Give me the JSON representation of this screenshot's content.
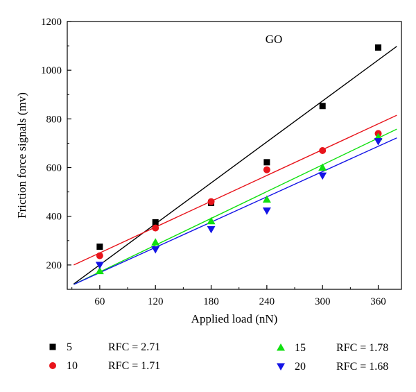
{
  "chart_data": {
    "type": "scatter",
    "title": "",
    "annotation": "GO",
    "xlabel": "Applied load (nN)",
    "ylabel": "Friction force signals (mv)",
    "xlim": [
      25,
      385
    ],
    "ylim": [
      100,
      1200
    ],
    "xticks": [
      60,
      120,
      180,
      240,
      300,
      360
    ],
    "yticks": [
      200,
      400,
      600,
      800,
      1000,
      1200
    ],
    "grid": false,
    "legend_position": "bottom",
    "series": [
      {
        "name": "5",
        "rfc_label": "RFC = 2.71",
        "marker": "square",
        "color": "#000000",
        "x": [
          60,
          120,
          180,
          240,
          300,
          360
        ],
        "y": [
          275,
          375,
          455,
          622,
          853,
          1093
        ],
        "fit": {
          "x": [
            32,
            380
          ],
          "y": [
            122,
            1098
          ]
        }
      },
      {
        "name": "10",
        "rfc_label": "RFC = 1.71",
        "marker": "circle",
        "color": "#e8141b",
        "x": [
          60,
          120,
          180,
          240,
          300,
          360
        ],
        "y": [
          238,
          352,
          460,
          591,
          670,
          740
        ],
        "fit": {
          "x": [
            32,
            380
          ],
          "y": [
            200,
            815
          ]
        }
      },
      {
        "name": "15",
        "rfc_label": "RFC = 1.78",
        "marker": "triangle-up",
        "color": "#11e011",
        "x": [
          60,
          120,
          180,
          240,
          300,
          360
        ],
        "y": [
          175,
          293,
          380,
          469,
          600,
          725
        ],
        "fit": {
          "x": [
            32,
            380
          ],
          "y": [
            120,
            758
          ]
        }
      },
      {
        "name": "20",
        "rfc_label": "RFC = 1.68",
        "marker": "triangle-down",
        "color": "#1414e6",
        "x": [
          60,
          120,
          180,
          240,
          300,
          360
        ],
        "y": [
          200,
          264,
          347,
          423,
          567,
          708
        ],
        "fit": {
          "x": [
            32,
            380
          ],
          "y": [
            120,
            722
          ]
        }
      }
    ]
  }
}
